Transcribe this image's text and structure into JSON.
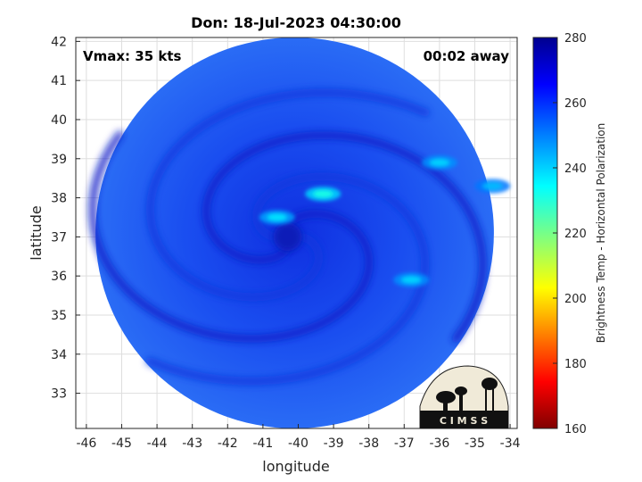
{
  "chart_data": {
    "type": "heatmap",
    "title": "Don: 18-Jul-2023 04:30:00",
    "annotations": {
      "vmax": "Vmax: 35 kts",
      "time_away": "00:02 away"
    },
    "xlabel": "longitude",
    "ylabel": "latitude",
    "xlim": [
      -46.3,
      -33.8
    ],
    "ylim": [
      32.1,
      42.1
    ],
    "x_ticks": [
      -46,
      -45,
      -44,
      -43,
      -42,
      -41,
      -40,
      -39,
      -38,
      -37,
      -36,
      -35,
      -34
    ],
    "y_ticks": [
      33,
      34,
      35,
      36,
      37,
      38,
      39,
      40,
      41,
      42
    ],
    "grid": true,
    "colorbar": {
      "label": "Brightness Temp - Horizontal Polarization",
      "range": [
        160,
        280
      ],
      "ticks": [
        160,
        180,
        200,
        220,
        240,
        260,
        280
      ],
      "colormap": "jet"
    },
    "storm_center": {
      "lon": -40.3,
      "lat": 37.0
    },
    "swath_center": {
      "lon": -40.1,
      "lat": 37.1
    },
    "swath_radius_deg_lat": 5.0,
    "background_temp": 258,
    "warm_spots": [
      {
        "lon": -39.3,
        "lat": 38.1,
        "value": 232
      },
      {
        "lon": -40.6,
        "lat": 37.5,
        "value": 238
      },
      {
        "lon": -36.0,
        "lat": 38.9,
        "value": 240
      },
      {
        "lon": -34.5,
        "lat": 38.3,
        "value": 243
      },
      {
        "lon": -36.8,
        "lat": 35.9,
        "value": 240
      }
    ],
    "logo_text": "C I M S S"
  }
}
